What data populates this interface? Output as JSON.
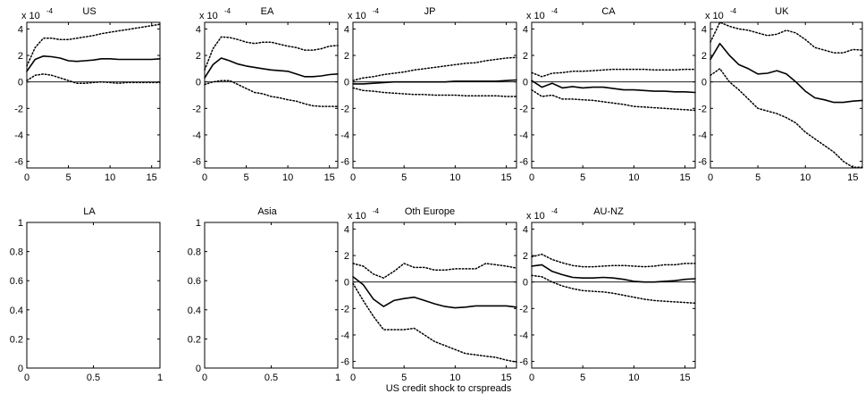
{
  "xlabel": "US credit shock to crspreads",
  "chart_data": [
    {
      "type": "line",
      "title": "US",
      "scale_label": "x 10",
      "scale_exponent": "-4",
      "xlim": [
        0,
        16
      ],
      "ylim": [
        -6.5,
        4.5
      ],
      "xticks": [
        0,
        5,
        10,
        15
      ],
      "yticks": [
        4,
        2,
        0,
        -2,
        -4,
        -6
      ],
      "x": [
        0,
        1,
        2,
        3,
        4,
        5,
        6,
        7,
        8,
        9,
        10,
        11,
        12,
        13,
        14,
        15,
        16
      ],
      "series": [
        {
          "role": "median",
          "values": [
            0.8,
            1.7,
            1.95,
            1.9,
            1.8,
            1.6,
            1.55,
            1.6,
            1.65,
            1.75,
            1.75,
            1.7,
            1.7,
            1.7,
            1.7,
            1.7,
            1.75
          ]
        },
        {
          "role": "upper",
          "values": [
            1.2,
            2.6,
            3.3,
            3.3,
            3.2,
            3.2,
            3.3,
            3.4,
            3.5,
            3.65,
            3.75,
            3.85,
            3.95,
            4.05,
            4.15,
            4.25,
            4.35
          ]
        },
        {
          "role": "lower",
          "values": [
            0.1,
            0.5,
            0.6,
            0.5,
            0.3,
            0.1,
            -0.1,
            -0.1,
            -0.05,
            0.0,
            -0.05,
            -0.1,
            -0.05,
            -0.05,
            -0.05,
            -0.05,
            -0.05
          ]
        }
      ],
      "zero_line": true
    },
    {
      "type": "line",
      "title": "EA",
      "scale_label": "x 10",
      "scale_exponent": "-4",
      "xlim": [
        0,
        16
      ],
      "ylim": [
        -6.5,
        4.5
      ],
      "xticks": [
        0,
        5,
        10,
        15
      ],
      "yticks": [
        4,
        2,
        0,
        -2,
        -4,
        -6
      ],
      "x": [
        0,
        1,
        2,
        3,
        4,
        5,
        6,
        7,
        8,
        9,
        10,
        11,
        12,
        13,
        14,
        15,
        16
      ],
      "series": [
        {
          "role": "median",
          "values": [
            0.3,
            1.3,
            1.8,
            1.6,
            1.35,
            1.2,
            1.1,
            1.0,
            0.9,
            0.85,
            0.8,
            0.6,
            0.4,
            0.4,
            0.45,
            0.55,
            0.6
          ]
        },
        {
          "role": "upper",
          "values": [
            0.9,
            2.5,
            3.4,
            3.35,
            3.2,
            3.0,
            2.9,
            3.0,
            3.0,
            2.85,
            2.7,
            2.6,
            2.4,
            2.4,
            2.5,
            2.7,
            2.75
          ]
        },
        {
          "role": "lower",
          "values": [
            -0.2,
            0.0,
            0.1,
            0.1,
            -0.2,
            -0.5,
            -0.8,
            -0.9,
            -1.1,
            -1.2,
            -1.35,
            -1.45,
            -1.65,
            -1.8,
            -1.85,
            -1.85,
            -1.85
          ]
        }
      ],
      "zero_line": true
    },
    {
      "type": "line",
      "title": "JP",
      "scale_label": "x 10",
      "scale_exponent": "-4",
      "xlim": [
        0,
        16
      ],
      "ylim": [
        -6.5,
        4.5
      ],
      "xticks": [
        0,
        5,
        10,
        15
      ],
      "yticks": [
        4,
        2,
        0,
        -2,
        -4,
        -6
      ],
      "x": [
        0,
        1,
        2,
        3,
        4,
        5,
        6,
        7,
        8,
        9,
        10,
        11,
        12,
        13,
        14,
        15,
        16
      ],
      "series": [
        {
          "role": "median",
          "values": [
            -0.15,
            -0.15,
            -0.1,
            -0.05,
            0.0,
            0.0,
            0.0,
            0.0,
            0.0,
            0.0,
            0.05,
            0.05,
            0.05,
            0.05,
            0.05,
            0.1,
            0.15
          ]
        },
        {
          "role": "upper",
          "values": [
            0.1,
            0.3,
            0.4,
            0.55,
            0.65,
            0.75,
            0.9,
            1.0,
            1.1,
            1.2,
            1.3,
            1.4,
            1.45,
            1.6,
            1.7,
            1.8,
            1.85
          ]
        },
        {
          "role": "lower",
          "values": [
            -0.45,
            -0.65,
            -0.7,
            -0.8,
            -0.85,
            -0.9,
            -0.95,
            -0.95,
            -1.0,
            -1.0,
            -1.0,
            -1.05,
            -1.05,
            -1.05,
            -1.05,
            -1.1,
            -1.1
          ]
        }
      ],
      "zero_line": true
    },
    {
      "type": "line",
      "title": "CA",
      "scale_label": "x 10",
      "scale_exponent": "-4",
      "xlim": [
        0,
        16
      ],
      "ylim": [
        -6.5,
        4.5
      ],
      "xticks": [
        0,
        5,
        10,
        15
      ],
      "yticks": [
        4,
        2,
        0,
        -2,
        -4,
        -6
      ],
      "x": [
        0,
        1,
        2,
        3,
        4,
        5,
        6,
        7,
        8,
        9,
        10,
        11,
        12,
        13,
        14,
        15,
        16
      ],
      "series": [
        {
          "role": "median",
          "values": [
            0.1,
            -0.4,
            -0.1,
            -0.45,
            -0.35,
            -0.45,
            -0.4,
            -0.4,
            -0.5,
            -0.6,
            -0.6,
            -0.65,
            -0.7,
            -0.7,
            -0.75,
            -0.75,
            -0.8
          ]
        },
        {
          "role": "upper",
          "values": [
            0.7,
            0.4,
            0.65,
            0.7,
            0.8,
            0.8,
            0.85,
            0.9,
            0.95,
            0.95,
            0.95,
            0.95,
            0.9,
            0.9,
            0.9,
            0.95,
            0.95
          ]
        },
        {
          "role": "lower",
          "values": [
            -0.6,
            -1.1,
            -1.0,
            -1.3,
            -1.3,
            -1.35,
            -1.4,
            -1.5,
            -1.6,
            -1.7,
            -1.85,
            -1.9,
            -1.95,
            -2.0,
            -2.05,
            -2.1,
            -2.15
          ]
        }
      ],
      "zero_line": true
    },
    {
      "type": "line",
      "title": "UK",
      "scale_label": "x 10",
      "scale_exponent": "-4",
      "xlim": [
        0,
        16
      ],
      "ylim": [
        -6.5,
        4.5
      ],
      "xticks": [
        0,
        5,
        10,
        15
      ],
      "yticks": [
        4,
        2,
        0,
        -2,
        -4,
        -6
      ],
      "x": [
        0,
        1,
        2,
        3,
        4,
        5,
        6,
        7,
        8,
        9,
        10,
        11,
        12,
        13,
        14,
        15,
        16
      ],
      "series": [
        {
          "role": "median",
          "values": [
            1.7,
            2.9,
            2.0,
            1.3,
            1.0,
            0.6,
            0.65,
            0.85,
            0.6,
            0.0,
            -0.7,
            -1.2,
            -1.35,
            -1.55,
            -1.55,
            -1.45,
            -1.4
          ]
        },
        {
          "role": "upper",
          "values": [
            3.0,
            4.5,
            4.2,
            4.0,
            3.9,
            3.7,
            3.5,
            3.6,
            3.9,
            3.7,
            3.2,
            2.6,
            2.4,
            2.2,
            2.2,
            2.45,
            2.4
          ]
        },
        {
          "role": "lower",
          "values": [
            0.5,
            1.0,
            0.0,
            -0.6,
            -1.3,
            -2.0,
            -2.2,
            -2.4,
            -2.7,
            -3.1,
            -3.8,
            -4.3,
            -4.8,
            -5.3,
            -6.0,
            -6.45,
            -6.45
          ]
        }
      ],
      "zero_line": true
    },
    {
      "type": "line",
      "title": "LA",
      "xlim": [
        0,
        1
      ],
      "ylim": [
        0,
        1
      ],
      "xticks": [
        0,
        0.5,
        1
      ],
      "xtick_labels": [
        "0",
        "0.5",
        "1"
      ],
      "yticks": [
        1,
        0.8,
        0.6,
        0.4,
        0.2,
        0
      ],
      "ytick_labels": [
        "1",
        "0.8",
        "0.6",
        "0.4",
        "0.2",
        "0"
      ],
      "series": [],
      "zero_line": false
    },
    {
      "type": "line",
      "title": "Asia",
      "xlim": [
        0,
        1
      ],
      "ylim": [
        0,
        1
      ],
      "xticks": [
        0,
        0.5,
        1
      ],
      "xtick_labels": [
        "0",
        "0.5",
        "1"
      ],
      "yticks": [
        1,
        0.8,
        0.6,
        0.4,
        0.2,
        0
      ],
      "ytick_labels": [
        "1",
        "0.8",
        "0.6",
        "0.4",
        "0.2",
        "0"
      ],
      "series": [],
      "zero_line": false
    },
    {
      "type": "line",
      "title": "Oth Europe",
      "scale_label": "x 10",
      "scale_exponent": "-4",
      "xlim": [
        0,
        16
      ],
      "ylim": [
        -6.5,
        4.5
      ],
      "xticks": [
        0,
        5,
        10,
        15
      ],
      "yticks": [
        4,
        2,
        0,
        -2,
        -4,
        -6
      ],
      "x": [
        0,
        1,
        2,
        3,
        4,
        5,
        6,
        7,
        8,
        9,
        10,
        11,
        12,
        13,
        14,
        15,
        16
      ],
      "series": [
        {
          "role": "median",
          "values": [
            0.4,
            -0.2,
            -1.3,
            -1.85,
            -1.4,
            -1.25,
            -1.15,
            -1.4,
            -1.65,
            -1.85,
            -1.95,
            -1.9,
            -1.8,
            -1.8,
            -1.8,
            -1.8,
            -1.9
          ]
        },
        {
          "role": "upper",
          "values": [
            1.4,
            1.2,
            0.6,
            0.3,
            0.8,
            1.4,
            1.1,
            1.1,
            0.9,
            0.9,
            1.0,
            1.0,
            1.0,
            1.4,
            1.3,
            1.2,
            1.05
          ]
        },
        {
          "role": "lower",
          "values": [
            -0.1,
            -1.4,
            -2.6,
            -3.6,
            -3.6,
            -3.6,
            -3.5,
            -4.0,
            -4.5,
            -4.8,
            -5.1,
            -5.4,
            -5.5,
            -5.6,
            -5.7,
            -5.9,
            -6.05
          ]
        }
      ],
      "zero_line": true
    },
    {
      "type": "line",
      "title": "AU-NZ",
      "scale_label": "x 10",
      "scale_exponent": "-4",
      "xlim": [
        0,
        16
      ],
      "ylim": [
        -6.5,
        4.5
      ],
      "xticks": [
        0,
        5,
        10,
        15
      ],
      "yticks": [
        4,
        2,
        0,
        -2,
        -4,
        -6
      ],
      "x": [
        0,
        1,
        2,
        3,
        4,
        5,
        6,
        7,
        8,
        9,
        10,
        11,
        12,
        13,
        14,
        15,
        16
      ],
      "series": [
        {
          "role": "median",
          "values": [
            1.2,
            1.3,
            0.8,
            0.55,
            0.35,
            0.3,
            0.3,
            0.35,
            0.3,
            0.2,
            0.05,
            0.0,
            0.0,
            0.05,
            0.1,
            0.2,
            0.25
          ]
        },
        {
          "role": "upper",
          "values": [
            1.9,
            2.1,
            1.7,
            1.45,
            1.25,
            1.15,
            1.15,
            1.2,
            1.25,
            1.25,
            1.2,
            1.15,
            1.2,
            1.3,
            1.3,
            1.4,
            1.4
          ]
        },
        {
          "role": "lower",
          "values": [
            0.5,
            0.4,
            0.0,
            -0.3,
            -0.5,
            -0.65,
            -0.7,
            -0.75,
            -0.85,
            -1.0,
            -1.15,
            -1.3,
            -1.4,
            -1.45,
            -1.5,
            -1.55,
            -1.6
          ]
        }
      ],
      "zero_line": true
    }
  ]
}
